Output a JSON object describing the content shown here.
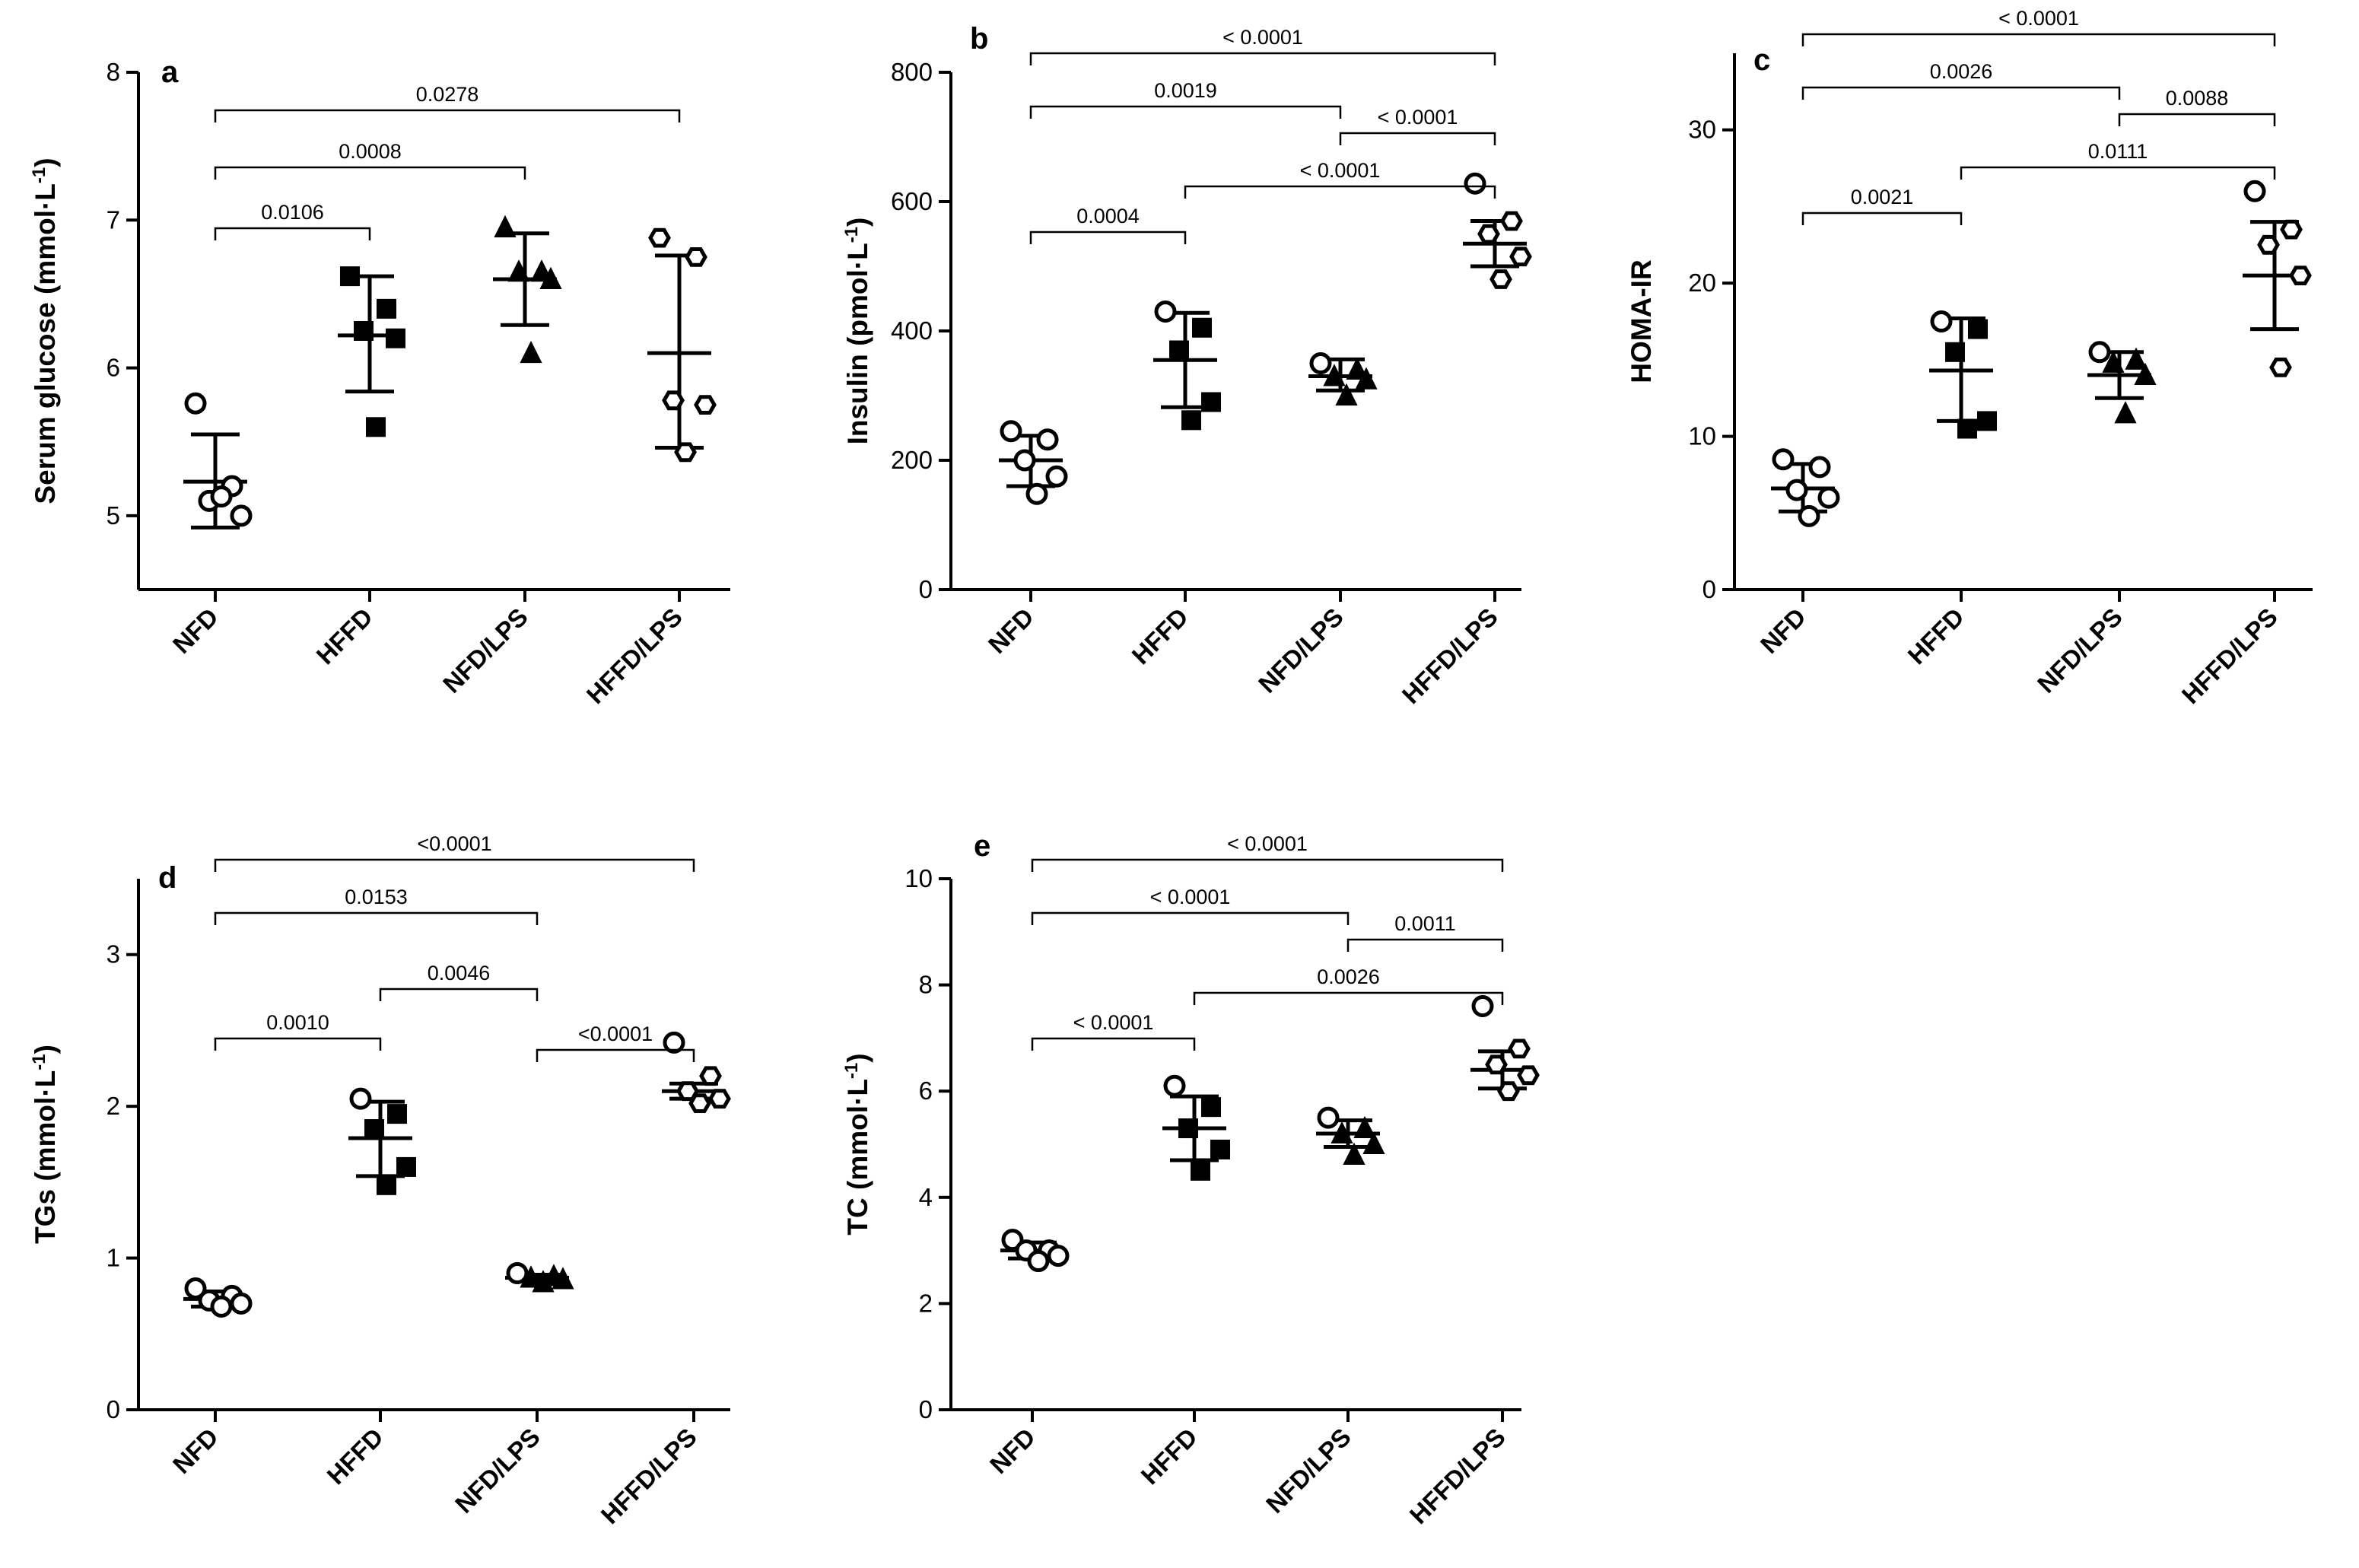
{
  "figure": {
    "categories": [
      "NFD",
      "HFFD",
      "NFD/LPS",
      "HFFD/LPS"
    ],
    "colors": {
      "ink": "#000000",
      "background": "#ffffff"
    }
  },
  "chart_data": [
    {
      "type": "scatter",
      "title": "a",
      "ylabel": "Serum glucose  (mmol·L",
      "ylabel_sup": "-1",
      "ylabel_end": ")",
      "ylim": [
        4.5,
        8
      ],
      "yticks": [
        "5",
        "6",
        "7",
        "8"
      ],
      "categories": [
        "NFD",
        "HFFD",
        "NFD/LPS",
        "HFFD/LPS"
      ],
      "series": [
        {
          "name": "NFD",
          "marker": "circle",
          "points": [
            5.76,
            5.2,
            5.1,
            5.0,
            5.13
          ],
          "mean": 5.23,
          "sd": [
            4.92,
            5.55
          ]
        },
        {
          "name": "HFFD",
          "marker": "square",
          "points": [
            6.62,
            6.4,
            6.25,
            6.2,
            5.6
          ],
          "mean": 6.22,
          "sd": [
            5.84,
            6.62
          ]
        },
        {
          "name": "NFD/LPS",
          "marker": "triangle",
          "points": [
            6.95,
            6.65,
            6.65,
            6.6,
            6.1
          ],
          "mean": 6.6,
          "sd": [
            6.29,
            6.91
          ]
        },
        {
          "name": "HFFD/LPS",
          "marker": "hex",
          "points": [
            6.88,
            6.75,
            5.78,
            5.75,
            5.43
          ],
          "mean": 6.1,
          "sd": [
            5.46,
            6.76
          ]
        }
      ],
      "comparisons": [
        {
          "from": 0,
          "to": 1,
          "label": "0.0106"
        },
        {
          "from": 0,
          "to": 2,
          "label": "0.0008"
        },
        {
          "from": 0,
          "to": 3,
          "label": "0.0278"
        }
      ]
    },
    {
      "type": "scatter",
      "title": "b",
      "ylabel": "Insulin (pmol·L",
      "ylabel_sup": "-1",
      "ylabel_end": ")",
      "ylim": [
        0,
        800
      ],
      "yticks": [
        "0",
        "200",
        "400",
        "600",
        "800"
      ],
      "categories": [
        "NFD",
        "HFFD",
        "NFD/LPS",
        "HFFD/LPS"
      ],
      "series": [
        {
          "name": "NFD",
          "marker": "circle",
          "points": [
            245,
            232,
            200,
            175,
            148
          ],
          "mean": 200,
          "sd": [
            160,
            238
          ]
        },
        {
          "name": "HFFD",
          "marker": "square",
          "points": [
            430,
            405,
            370,
            290,
            262
          ],
          "mean": 355,
          "sd": [
            282,
            428
          ]
        },
        {
          "name": "NFD/LPS",
          "marker": "triangle",
          "points": [
            350,
            340,
            330,
            325,
            300
          ],
          "mean": 330,
          "sd": [
            308,
            356
          ]
        },
        {
          "name": "HFFD/LPS",
          "marker": "hex",
          "points": [
            628,
            570,
            550,
            515,
            480
          ],
          "mean": 535,
          "sd": [
            500,
            570
          ]
        }
      ],
      "comparisons": [
        {
          "from": 0,
          "to": 1,
          "label": "0.0004"
        },
        {
          "from": 1,
          "to": 3,
          "label": "< 0.0001"
        },
        {
          "from": 0,
          "to": 2,
          "label": "0.0019"
        },
        {
          "from": 2,
          "to": 3,
          "label": "< 0.0001"
        },
        {
          "from": 0,
          "to": 3,
          "label": "< 0.0001"
        }
      ]
    },
    {
      "type": "scatter",
      "title": "c",
      "ylabel": "HOMA-IR",
      "ylabel_sup": "",
      "ylabel_end": "",
      "ylim": [
        0,
        35
      ],
      "yticks": [
        "0",
        "10",
        "20",
        "30"
      ],
      "categories": [
        "NFD",
        "HFFD",
        "NFD/LPS",
        "HFFD/LPS"
      ],
      "series": [
        {
          "name": "NFD",
          "marker": "circle",
          "points": [
            8.5,
            8.0,
            6.5,
            6.0,
            4.8
          ],
          "mean": 6.6,
          "sd": [
            5.1,
            8.2
          ]
        },
        {
          "name": "HFFD",
          "marker": "square",
          "points": [
            17.5,
            17.0,
            15.5,
            11.0,
            10.5
          ],
          "mean": 14.3,
          "sd": [
            11.0,
            17.7
          ]
        },
        {
          "name": "NFD/LPS",
          "marker": "triangle",
          "points": [
            15.5,
            15.0,
            14.8,
            14.0,
            11.5
          ],
          "mean": 14.0,
          "sd": [
            12.5,
            15.5
          ]
        },
        {
          "name": "HFFD/LPS",
          "marker": "hex",
          "points": [
            26.0,
            23.5,
            22.5,
            20.5,
            14.5
          ],
          "mean": 20.5,
          "sd": [
            17.0,
            24.0
          ]
        }
      ],
      "comparisons": [
        {
          "from": 0,
          "to": 1,
          "label": "0.0021"
        },
        {
          "from": 1,
          "to": 3,
          "label": "0.0111"
        },
        {
          "from": 0,
          "to": 2,
          "label": "0.0026"
        },
        {
          "from": 2,
          "to": 3,
          "label": "0.0088"
        },
        {
          "from": 0,
          "to": 3,
          "label": "< 0.0001"
        }
      ]
    },
    {
      "type": "scatter",
      "title": "d",
      "ylabel": "TGs (mmol·L",
      "ylabel_sup": "-1",
      "ylabel_end": ")",
      "ylim": [
        0,
        3.5
      ],
      "yticks": [
        "0",
        "1",
        "2",
        "3"
      ],
      "categories": [
        "NFD",
        "HFFD",
        "NFD/LPS",
        "HFFD/LPS"
      ],
      "series": [
        {
          "name": "NFD",
          "marker": "circle",
          "points": [
            0.8,
            0.75,
            0.72,
            0.7,
            0.68
          ],
          "mean": 0.73,
          "sd": [
            0.68,
            0.78
          ]
        },
        {
          "name": "HFFD",
          "marker": "square",
          "points": [
            2.05,
            1.95,
            1.85,
            1.6,
            1.48
          ],
          "mean": 1.79,
          "sd": [
            1.54,
            2.03
          ]
        },
        {
          "name": "NFD/LPS",
          "marker": "triangle",
          "points": [
            0.9,
            0.88,
            0.87,
            0.86,
            0.84
          ],
          "mean": 0.87,
          "sd": [
            0.85,
            0.89
          ]
        },
        {
          "name": "HFFD/LPS",
          "marker": "hex",
          "points": [
            2.42,
            2.2,
            2.1,
            2.05,
            2.02
          ],
          "mean": 2.1,
          "sd": [
            2.05,
            2.15
          ]
        }
      ],
      "comparisons": [
        {
          "from": 0,
          "to": 1,
          "label": "0.0010"
        },
        {
          "from": 1,
          "to": 2,
          "label": "0.0046"
        },
        {
          "from": 2,
          "to": 3,
          "label": "<0.0001"
        },
        {
          "from": 0,
          "to": 2,
          "label": "0.0153"
        },
        {
          "from": 0,
          "to": 3,
          "label": "<0.0001"
        }
      ]
    },
    {
      "type": "scatter",
      "title": "e",
      "ylabel": "TC (mmol·L",
      "ylabel_sup": "-1",
      "ylabel_end": ")",
      "ylim": [
        0,
        10
      ],
      "yticks": [
        "0",
        "2",
        "4",
        "6",
        "8",
        "10"
      ],
      "categories": [
        "NFD",
        "HFFD",
        "NFD/LPS",
        "HFFD/LPS"
      ],
      "series": [
        {
          "name": "NFD",
          "marker": "circle",
          "points": [
            3.2,
            3.0,
            3.0,
            2.9,
            2.8
          ],
          "mean": 3.0,
          "sd": [
            2.85,
            3.15
          ]
        },
        {
          "name": "HFFD",
          "marker": "square",
          "points": [
            6.1,
            5.7,
            5.3,
            4.9,
            4.5
          ],
          "mean": 5.3,
          "sd": [
            4.7,
            5.9
          ]
        },
        {
          "name": "NFD/LPS",
          "marker": "triangle",
          "points": [
            5.5,
            5.3,
            5.2,
            5.0,
            4.8
          ],
          "mean": 5.2,
          "sd": [
            4.95,
            5.45
          ]
        },
        {
          "name": "HFFD/LPS",
          "marker": "hex",
          "points": [
            7.6,
            6.8,
            6.5,
            6.3,
            6.0
          ],
          "mean": 6.4,
          "sd": [
            6.05,
            6.75
          ]
        }
      ],
      "comparisons": [
        {
          "from": 0,
          "to": 1,
          "label": "< 0.0001"
        },
        {
          "from": 1,
          "to": 3,
          "label": "0.0026"
        },
        {
          "from": 2,
          "to": 3,
          "label": "0.0011"
        },
        {
          "from": 0,
          "to": 2,
          "label": "< 0.0001"
        },
        {
          "from": 0,
          "to": 3,
          "label": "< 0.0001"
        }
      ]
    }
  ]
}
